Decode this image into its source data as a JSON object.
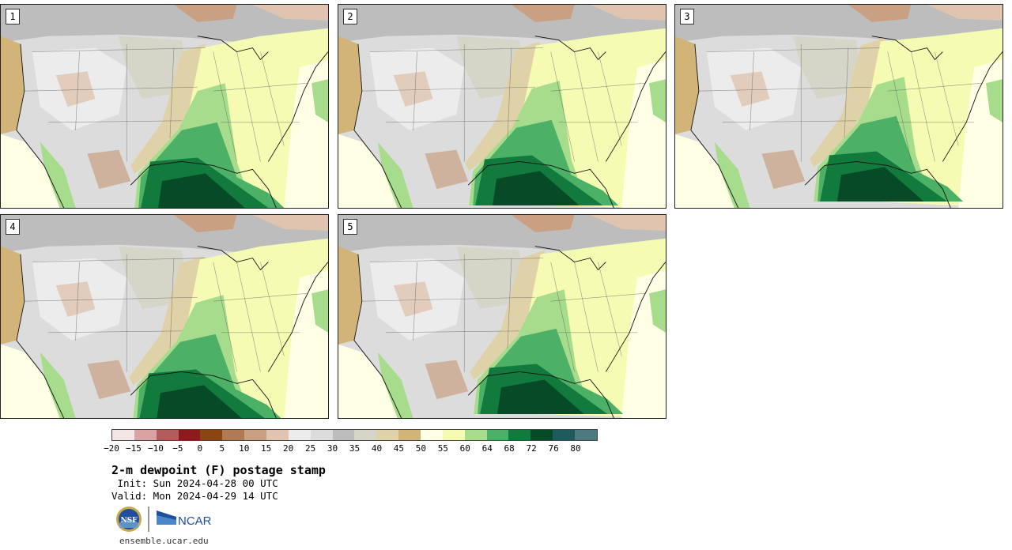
{
  "panels": [
    {
      "id": "p1",
      "label": "1"
    },
    {
      "id": "p2",
      "label": "2"
    },
    {
      "id": "p3",
      "label": "3"
    },
    {
      "id": "p4",
      "label": "4"
    },
    {
      "id": "p5",
      "label": "5"
    }
  ],
  "colorbar": {
    "ticks": [
      "−20",
      "−15",
      "−10",
      "−5",
      "0",
      "5",
      "10",
      "15",
      "20",
      "25",
      "30",
      "35",
      "40",
      "45",
      "50",
      "55",
      "60",
      "64",
      "68",
      "72",
      "76",
      "80"
    ],
    "colors": [
      "#f3e6e6",
      "#d9a3a3",
      "#b35c5c",
      "#8c1a1a",
      "#8b4513",
      "#b07a55",
      "#c9a082",
      "#e0c4b0",
      "#ececec",
      "#dcdcdc",
      "#bdbdbd",
      "#d6d6c8",
      "#e0d2a8",
      "#d2b478",
      "#ffffe6",
      "#f6fbb4",
      "#a6dc8c",
      "#4cb066",
      "#127a3c",
      "#064a28",
      "#1f5a5c",
      "#4d7a7e"
    ]
  },
  "title": "2-m dewpoint (F) postage stamp",
  "init": " Init: Sun 2024-04-28 00 UTC",
  "valid": "Valid: Mon 2024-04-29 14 UTC",
  "logos": {
    "nsf": "NSF",
    "ncar": "NCAR"
  },
  "site": "ensemble.ucar.edu"
}
